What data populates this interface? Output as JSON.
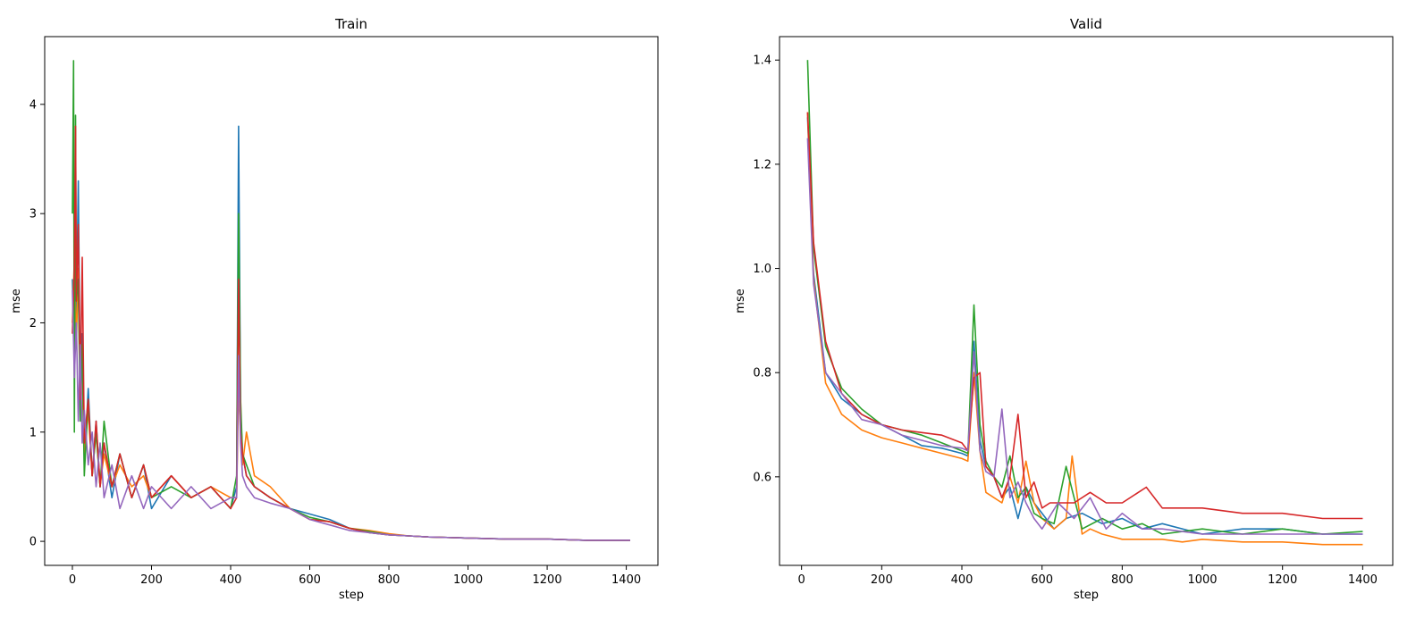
{
  "chart_data": [
    {
      "type": "line",
      "title": "Train",
      "xlabel": "step",
      "ylabel": "mse",
      "xlim": [
        -70,
        1480
      ],
      "ylim": [
        -0.22,
        4.62
      ],
      "xticks": [
        0,
        200,
        400,
        600,
        800,
        1000,
        1200,
        1400
      ],
      "yticks": [
        0,
        1,
        2,
        3,
        4
      ],
      "grid": false,
      "series": [
        {
          "color": "#1f77b4",
          "x": [
            0,
            5,
            10,
            15,
            20,
            25,
            30,
            40,
            50,
            60,
            70,
            80,
            100,
            120,
            150,
            180,
            200,
            250,
            300,
            350,
            400,
            415,
            420,
            425,
            430,
            440,
            460,
            500,
            550,
            600,
            650,
            700,
            750,
            800,
            850,
            900,
            1000,
            1100,
            1200,
            1300,
            1410
          ],
          "y": [
            2.4,
            1.7,
            2.0,
            3.3,
            1.3,
            1.9,
            0.7,
            1.4,
            0.6,
            1.1,
            0.5,
            0.9,
            0.4,
            0.8,
            0.4,
            0.7,
            0.3,
            0.6,
            0.4,
            0.5,
            0.3,
            0.5,
            3.8,
            1.2,
            0.8,
            0.6,
            0.5,
            0.4,
            0.3,
            0.25,
            0.2,
            0.12,
            0.08,
            0.06,
            0.05,
            0.04,
            0.03,
            0.02,
            0.02,
            0.01,
            0.01
          ]
        },
        {
          "color": "#ff7f0e",
          "x": [
            0,
            5,
            10,
            15,
            20,
            25,
            30,
            40,
            50,
            60,
            70,
            80,
            100,
            120,
            150,
            180,
            200,
            250,
            300,
            350,
            400,
            415,
            420,
            425,
            430,
            440,
            460,
            500,
            550,
            600,
            650,
            700,
            750,
            800,
            850,
            900,
            1000,
            1100,
            1200,
            1300,
            1410
          ],
          "y": [
            2.0,
            2.6,
            1.8,
            2.5,
            1.2,
            1.5,
            0.8,
            1.2,
            0.6,
            1.0,
            0.5,
            0.8,
            0.5,
            0.7,
            0.5,
            0.6,
            0.4,
            0.6,
            0.4,
            0.5,
            0.4,
            0.4,
            1.4,
            1.0,
            0.7,
            1.0,
            0.6,
            0.5,
            0.3,
            0.2,
            0.18,
            0.12,
            0.1,
            0.07,
            0.05,
            0.04,
            0.03,
            0.02,
            0.02,
            0.01,
            0.01
          ]
        },
        {
          "color": "#2ca02c",
          "x": [
            0,
            3,
            5,
            8,
            10,
            15,
            20,
            25,
            30,
            40,
            50,
            60,
            70,
            80,
            100,
            120,
            150,
            180,
            200,
            250,
            300,
            350,
            400,
            415,
            420,
            425,
            430,
            440,
            460,
            500,
            550,
            600,
            650,
            700,
            750,
            800,
            850,
            900,
            1000,
            1100,
            1200,
            1300,
            1410
          ],
          "y": [
            3.0,
            4.4,
            1.0,
            3.9,
            2.2,
            2.4,
            1.1,
            1.8,
            0.6,
            1.3,
            0.6,
            1.0,
            0.5,
            1.1,
            0.5,
            0.8,
            0.4,
            0.7,
            0.4,
            0.5,
            0.4,
            0.5,
            0.3,
            0.6,
            3.0,
            1.3,
            0.8,
            0.7,
            0.5,
            0.4,
            0.3,
            0.22,
            0.18,
            0.12,
            0.09,
            0.06,
            0.05,
            0.04,
            0.03,
            0.02,
            0.02,
            0.01,
            0.01
          ]
        },
        {
          "color": "#d62728",
          "x": [
            0,
            5,
            8,
            10,
            15,
            20,
            25,
            30,
            40,
            50,
            60,
            70,
            80,
            100,
            120,
            150,
            180,
            200,
            250,
            300,
            350,
            400,
            415,
            420,
            425,
            430,
            440,
            460,
            500,
            550,
            600,
            650,
            700,
            750,
            800,
            850,
            900,
            1000,
            1100,
            1200,
            1300,
            1410
          ],
          "y": [
            1.9,
            2.5,
            3.8,
            2.2,
            2.9,
            1.3,
            2.6,
            0.9,
            1.3,
            0.6,
            1.1,
            0.5,
            0.9,
            0.5,
            0.8,
            0.4,
            0.7,
            0.4,
            0.6,
            0.4,
            0.5,
            0.3,
            0.4,
            2.4,
            1.0,
            0.8,
            0.6,
            0.5,
            0.4,
            0.3,
            0.2,
            0.18,
            0.12,
            0.08,
            0.06,
            0.05,
            0.04,
            0.03,
            0.02,
            0.02,
            0.01,
            0.01
          ]
        },
        {
          "color": "#9467bd",
          "x": [
            0,
            5,
            10,
            15,
            20,
            25,
            30,
            40,
            50,
            60,
            70,
            80,
            100,
            120,
            150,
            180,
            200,
            250,
            300,
            350,
            400,
            415,
            420,
            425,
            430,
            440,
            460,
            500,
            550,
            600,
            650,
            700,
            750,
            800,
            850,
            900,
            1000,
            1100,
            1200,
            1300,
            1410
          ],
          "y": [
            2.3,
            1.5,
            2.0,
            1.1,
            1.8,
            0.9,
            1.2,
            0.7,
            1.0,
            0.5,
            0.9,
            0.4,
            0.7,
            0.3,
            0.6,
            0.3,
            0.5,
            0.3,
            0.5,
            0.3,
            0.4,
            0.4,
            1.7,
            0.9,
            0.6,
            0.5,
            0.4,
            0.35,
            0.3,
            0.2,
            0.15,
            0.1,
            0.08,
            0.06,
            0.05,
            0.04,
            0.03,
            0.02,
            0.02,
            0.01,
            0.01
          ]
        }
      ]
    },
    {
      "type": "line",
      "title": "Valid",
      "xlabel": "step",
      "ylabel": "mse",
      "xlim": [
        -55,
        1475
      ],
      "ylim": [
        0.43,
        1.445
      ],
      "xticks": [
        0,
        200,
        400,
        600,
        800,
        1000,
        1200,
        1400
      ],
      "yticks": [
        0.6,
        0.8,
        1.0,
        1.2,
        1.4
      ],
      "grid": false,
      "series": [
        {
          "color": "#1f77b4",
          "x": [
            15,
            30,
            60,
            100,
            150,
            200,
            250,
            300,
            350,
            400,
            415,
            430,
            445,
            460,
            480,
            500,
            520,
            540,
            560,
            580,
            600,
            630,
            660,
            700,
            750,
            800,
            850,
            900,
            1000,
            1100,
            1200,
            1300,
            1400
          ],
          "y": [
            1.29,
            0.99,
            0.8,
            0.75,
            0.72,
            0.7,
            0.68,
            0.66,
            0.655,
            0.645,
            0.64,
            0.86,
            0.67,
            0.62,
            0.6,
            0.56,
            0.58,
            0.52,
            0.58,
            0.55,
            0.53,
            0.5,
            0.52,
            0.53,
            0.51,
            0.52,
            0.5,
            0.51,
            0.49,
            0.5,
            0.5,
            0.49,
            0.49
          ]
        },
        {
          "color": "#ff7f0e",
          "x": [
            15,
            30,
            60,
            100,
            150,
            200,
            250,
            300,
            350,
            400,
            415,
            430,
            445,
            460,
            480,
            500,
            520,
            540,
            560,
            580,
            600,
            630,
            660,
            675,
            700,
            720,
            750,
            800,
            850,
            900,
            950,
            1000,
            1100,
            1200,
            1300,
            1400
          ],
          "y": [
            1.3,
            0.98,
            0.78,
            0.72,
            0.69,
            0.675,
            0.665,
            0.655,
            0.645,
            0.635,
            0.63,
            0.8,
            0.65,
            0.57,
            0.56,
            0.55,
            0.6,
            0.55,
            0.63,
            0.55,
            0.52,
            0.5,
            0.52,
            0.64,
            0.49,
            0.5,
            0.49,
            0.48,
            0.48,
            0.48,
            0.475,
            0.48,
            0.475,
            0.475,
            0.47,
            0.47
          ]
        },
        {
          "color": "#2ca02c",
          "x": [
            15,
            30,
            60,
            100,
            150,
            200,
            250,
            300,
            350,
            400,
            415,
            430,
            445,
            460,
            480,
            500,
            520,
            540,
            560,
            580,
            600,
            630,
            660,
            700,
            750,
            800,
            850,
            900,
            1000,
            1100,
            1200,
            1300,
            1400
          ],
          "y": [
            1.4,
            1.04,
            0.85,
            0.77,
            0.73,
            0.7,
            0.69,
            0.68,
            0.665,
            0.65,
            0.645,
            0.93,
            0.7,
            0.63,
            0.6,
            0.58,
            0.64,
            0.56,
            0.58,
            0.53,
            0.52,
            0.51,
            0.62,
            0.5,
            0.52,
            0.5,
            0.51,
            0.49,
            0.5,
            0.49,
            0.5,
            0.49,
            0.495
          ]
        },
        {
          "color": "#d62728",
          "x": [
            15,
            30,
            60,
            100,
            150,
            200,
            250,
            300,
            350,
            400,
            415,
            430,
            445,
            460,
            480,
            500,
            520,
            540,
            560,
            580,
            600,
            620,
            680,
            720,
            760,
            800,
            860,
            900,
            1000,
            1100,
            1200,
            1300,
            1400
          ],
          "y": [
            1.3,
            1.05,
            0.86,
            0.76,
            0.72,
            0.7,
            0.69,
            0.685,
            0.68,
            0.665,
            0.65,
            0.79,
            0.8,
            0.62,
            0.6,
            0.56,
            0.6,
            0.72,
            0.56,
            0.59,
            0.54,
            0.55,
            0.55,
            0.57,
            0.55,
            0.55,
            0.58,
            0.54,
            0.54,
            0.53,
            0.53,
            0.52,
            0.52
          ]
        },
        {
          "color": "#9467bd",
          "x": [
            15,
            30,
            60,
            100,
            150,
            200,
            250,
            300,
            350,
            400,
            415,
            430,
            445,
            460,
            480,
            500,
            520,
            540,
            560,
            580,
            600,
            640,
            680,
            720,
            760,
            800,
            850,
            900,
            1000,
            1100,
            1200,
            1300,
            1400
          ],
          "y": [
            1.25,
            0.97,
            0.8,
            0.76,
            0.71,
            0.7,
            0.68,
            0.67,
            0.66,
            0.655,
            0.65,
            0.84,
            0.65,
            0.61,
            0.6,
            0.73,
            0.56,
            0.59,
            0.55,
            0.52,
            0.5,
            0.55,
            0.52,
            0.56,
            0.5,
            0.53,
            0.5,
            0.5,
            0.49,
            0.49,
            0.49,
            0.49,
            0.49
          ]
        }
      ]
    }
  ]
}
